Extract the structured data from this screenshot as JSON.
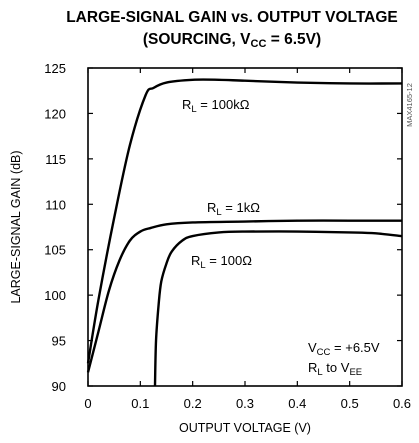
{
  "chart_data": {
    "type": "line",
    "title_line1": "LARGE-SIGNAL GAIN vs. OUTPUT VOLTAGE",
    "title_line2_main": "(SOURCING, V",
    "title_line2_sub": "CC",
    "title_line2_tail": " = 6.5V)",
    "xlabel": "OUTPUT VOLTAGE (V)",
    "ylabel": "LARGE-SIGNAL GAIN (dB)",
    "xlim": [
      0,
      0.6
    ],
    "ylim": [
      90,
      125
    ],
    "xticks": [
      0,
      0.1,
      0.2,
      0.3,
      0.4,
      0.5,
      0.6
    ],
    "xtick_labels": [
      "0",
      "0.1",
      "0.2",
      "0.3",
      "0.4",
      "0.5",
      "0.6"
    ],
    "yticks": [
      90,
      95,
      100,
      105,
      110,
      115,
      120,
      125
    ],
    "ytick_labels": [
      "90",
      "95",
      "100",
      "105",
      "110",
      "115",
      "120",
      "125"
    ],
    "grid": false,
    "watermark": "MAX4165-12",
    "conditions": {
      "vcc_main": "V",
      "vcc_sub": "CC",
      "vcc_tail": " = +6.5V",
      "rl_main": "R",
      "rl_sub": "L",
      "rl_mid": " to V",
      "rl_sub2": "EE"
    },
    "series": [
      {
        "label_main": "R",
        "label_sub": "L",
        "label_tail": " = 100kΩ",
        "x": [
          0.0,
          0.02,
          0.05,
          0.08,
          0.11,
          0.125,
          0.15,
          0.2,
          0.25,
          0.3,
          0.4,
          0.5,
          0.6
        ],
        "y": [
          92.5,
          99.5,
          108.5,
          116.5,
          122.0,
          122.8,
          123.4,
          123.7,
          123.7,
          123.6,
          123.4,
          123.3,
          123.3
        ]
      },
      {
        "label_main": "R",
        "label_sub": "L",
        "label_tail": " = 1kΩ",
        "x": [
          0.0,
          0.02,
          0.04,
          0.06,
          0.08,
          0.1,
          0.12,
          0.15,
          0.2,
          0.3,
          0.4,
          0.5,
          0.6
        ],
        "y": [
          91.5,
          96.0,
          100.5,
          103.8,
          106.0,
          107.0,
          107.4,
          107.8,
          108.0,
          108.1,
          108.2,
          108.2,
          108.2
        ]
      },
      {
        "label_main": "R",
        "label_sub": "L",
        "label_tail": " = 100Ω",
        "x": [
          0.128,
          0.13,
          0.135,
          0.14,
          0.15,
          0.16,
          0.18,
          0.2,
          0.25,
          0.3,
          0.4,
          0.5,
          0.55,
          0.6
        ],
        "y": [
          90.0,
          95.0,
          99.0,
          101.5,
          103.5,
          104.8,
          106.0,
          106.5,
          106.9,
          107.0,
          107.0,
          106.9,
          106.8,
          106.5
        ]
      }
    ]
  }
}
